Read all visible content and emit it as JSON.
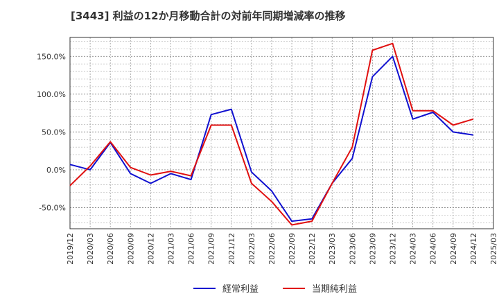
{
  "chart_data": {
    "type": "line",
    "title": "[3443]  利益の12か月移動合計の対前年同期増減率の推移",
    "xlabel": "",
    "ylabel": "",
    "ylim": [
      -78,
      175
    ],
    "y_ticks": [
      -50,
      0,
      50,
      100,
      150
    ],
    "y_tick_labels": [
      "-50.0%",
      "0.0%",
      "50.0%",
      "100.0%",
      "150.0%"
    ],
    "x_tick_labels": [
      "2019/12",
      "2020/03",
      "2020/06",
      "2020/09",
      "2020/12",
      "2021/03",
      "2021/06",
      "2021/09",
      "2021/12",
      "2022/03",
      "2022/06",
      "2022/09",
      "2022/12",
      "2023/03",
      "2023/06",
      "2023/09",
      "2023/12",
      "2024/03",
      "2024/06",
      "2024/09",
      "2024/12",
      "2025/03"
    ],
    "categories": [
      "2019/12",
      "2020/03",
      "2020/06",
      "2020/09",
      "2020/12",
      "2021/03",
      "2021/06",
      "2021/09",
      "2021/12",
      "2022/03",
      "2022/06",
      "2022/09",
      "2022/12",
      "2023/03",
      "2023/06",
      "2023/09",
      "2023/12",
      "2024/03",
      "2024/06",
      "2024/09",
      "2024/12"
    ],
    "series": [
      {
        "name": "経常利益",
        "color": "#1010d0",
        "values": [
          7,
          0,
          36,
          -5,
          -18,
          -5,
          -13,
          73,
          80,
          -3,
          -28,
          -68,
          -65,
          -18,
          15,
          123,
          150,
          67,
          76,
          50,
          46
        ]
      },
      {
        "name": "当期純利益",
        "color": "#e01010",
        "values": [
          -21,
          5,
          37,
          3,
          -7,
          -2,
          -8,
          59,
          59,
          -18,
          -42,
          -73,
          -68,
          -18,
          30,
          158,
          167,
          78,
          78,
          59,
          67
        ]
      }
    ],
    "grid": true,
    "legend": "bottom"
  }
}
